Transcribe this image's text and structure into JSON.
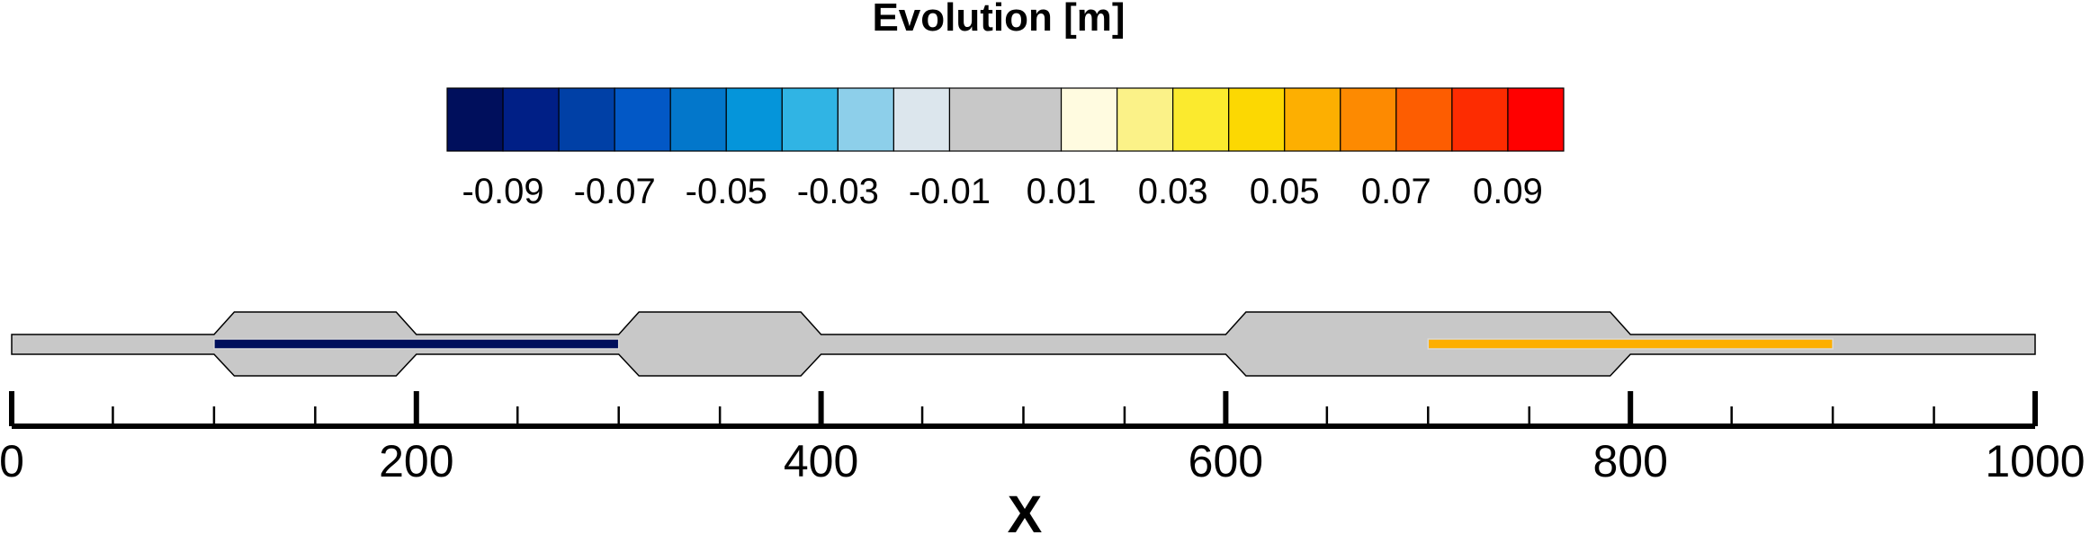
{
  "chart_data": {
    "type": "heatmap",
    "title": "Evolution [m]",
    "xlabel": "X",
    "xlim": [
      0,
      1000
    ],
    "x_ticks": [
      "0",
      "200",
      "400",
      "600",
      "800",
      "1000"
    ],
    "x_minor_step": 50,
    "colorbar": {
      "labels": [
        "-0.09",
        "-0.07",
        "-0.05",
        "-0.03",
        "-0.01",
        "0.01",
        "0.03",
        "0.05",
        "0.07",
        "0.09"
      ],
      "label_values": [
        -0.09,
        -0.07,
        -0.05,
        -0.03,
        -0.01,
        0.01,
        0.03,
        0.05,
        0.07,
        0.09
      ],
      "bins": [
        {
          "from": -0.1,
          "to": -0.09,
          "color": "#000f5c"
        },
        {
          "from": -0.09,
          "to": -0.08,
          "color": "#001f86"
        },
        {
          "from": -0.08,
          "to": -0.07,
          "color": "#0040a6"
        },
        {
          "from": -0.07,
          "to": -0.06,
          "color": "#0258c6"
        },
        {
          "from": -0.06,
          "to": -0.05,
          "color": "#0377cb"
        },
        {
          "from": -0.05,
          "to": -0.04,
          "color": "#0595da"
        },
        {
          "from": -0.04,
          "to": -0.03,
          "color": "#30b4e4"
        },
        {
          "from": -0.03,
          "to": -0.02,
          "color": "#8dcfea"
        },
        {
          "from": -0.02,
          "to": -0.01,
          "color": "#dce6ed"
        },
        {
          "from": -0.01,
          "to": 0.01,
          "color": "#c8c8c8"
        },
        {
          "from": 0.01,
          "to": 0.02,
          "color": "#fffbe0"
        },
        {
          "from": 0.02,
          "to": 0.03,
          "color": "#fbf288"
        },
        {
          "from": 0.03,
          "to": 0.04,
          "color": "#fbea2e"
        },
        {
          "from": 0.04,
          "to": 0.05,
          "color": "#fcd802"
        },
        {
          "from": 0.05,
          "to": 0.06,
          "color": "#fdaf01"
        },
        {
          "from": 0.06,
          "to": 0.07,
          "color": "#fd8a01"
        },
        {
          "from": 0.07,
          "to": 0.08,
          "color": "#fd5d01"
        },
        {
          "from": 0.08,
          "to": 0.09,
          "color": "#fd2c01"
        },
        {
          "from": 0.09,
          "to": 0.1,
          "color": "#ff0000"
        }
      ]
    },
    "domain": {
      "x_range": [
        0,
        1000
      ],
      "fill_color": "#c8c8c8",
      "widenings": [
        {
          "x_start": 100,
          "x_full_start": 110,
          "x_full_end": 190,
          "x_end": 200
        },
        {
          "x_start": 300,
          "x_full_start": 310,
          "x_full_end": 390,
          "x_end": 400
        },
        {
          "x_start": 600,
          "x_full_start": 610,
          "x_full_end": 790,
          "x_end": 800
        }
      ]
    },
    "evolution_bands": [
      {
        "x_start": 100,
        "x_end": 300,
        "value": -0.1,
        "color": "#000f5c"
      },
      {
        "x_start": 700,
        "x_end": 900,
        "value": 0.05,
        "color": "#fdaf01"
      }
    ]
  }
}
